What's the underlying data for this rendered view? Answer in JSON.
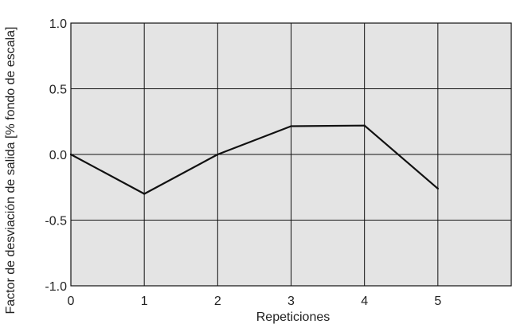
{
  "chart_data": {
    "type": "line",
    "title": "",
    "xlabel": "Repeticiones",
    "ylabel": "Factor de desviación de salida [% fondo de escala]",
    "x": [
      0,
      1,
      2,
      3,
      4,
      5
    ],
    "series": [
      {
        "values": [
          0.0,
          -0.3,
          0.0,
          0.215,
          0.22,
          -0.26
        ]
      }
    ],
    "xlim": [
      0,
      6
    ],
    "ylim": [
      -1.0,
      1.0
    ],
    "x_ticks": [
      "0",
      "1",
      "2",
      "3",
      "4",
      "5"
    ],
    "y_ticks": [
      "1.0",
      "0.5",
      "0.0",
      "-0.5",
      "-1.0"
    ],
    "grid": true,
    "colors": {
      "plot_background": "#e4e4e4",
      "line": "#111111",
      "grid": "#111111"
    }
  }
}
